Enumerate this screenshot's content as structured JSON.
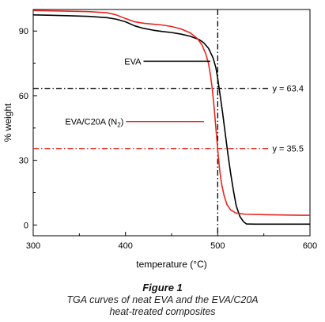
{
  "chart_data": {
    "type": "line",
    "xlabel_main": "temperature (",
    "xlabel_unit": "°C",
    "xlabel_close": ")",
    "ylabel": "% weight",
    "xlim": [
      300,
      600
    ],
    "ylim": [
      -5,
      100
    ],
    "xticks": [
      300,
      400,
      500,
      600
    ],
    "yticks": [
      0,
      30,
      60,
      90
    ],
    "grid": false,
    "series": [
      {
        "name": "EVA",
        "color": "#000000",
        "points": [
          [
            300,
            97.5
          ],
          [
            320,
            97.3
          ],
          [
            340,
            97.1
          ],
          [
            360,
            96.8
          ],
          [
            380,
            96.2
          ],
          [
            390,
            95.5
          ],
          [
            400,
            94.3
          ],
          [
            410,
            92.4
          ],
          [
            420,
            91.2
          ],
          [
            430,
            90.4
          ],
          [
            440,
            89.8
          ],
          [
            450,
            89.3
          ],
          [
            460,
            88.6
          ],
          [
            470,
            87.6
          ],
          [
            480,
            86.0
          ],
          [
            485,
            84.5
          ],
          [
            490,
            82.0
          ],
          [
            495,
            77.5
          ],
          [
            498,
            73.0
          ],
          [
            500,
            68.0
          ],
          [
            502,
            62.0
          ],
          [
            505,
            53.0
          ],
          [
            508,
            43.0
          ],
          [
            511,
            33.0
          ],
          [
            514,
            24.0
          ],
          [
            517,
            16.0
          ],
          [
            520,
            9.0
          ],
          [
            524,
            4.0
          ],
          [
            528,
            1.5
          ],
          [
            531,
            0.5
          ],
          [
            540,
            0.4
          ],
          [
            560,
            0.4
          ],
          [
            580,
            0.4
          ],
          [
            600,
            0.4
          ]
        ]
      },
      {
        "name": "EVA/C20A (N2)",
        "color": "#e8261f",
        "points": [
          [
            300,
            99.5
          ],
          [
            330,
            99.3
          ],
          [
            360,
            99.0
          ],
          [
            380,
            98.5
          ],
          [
            390,
            97.5
          ],
          [
            400,
            95.8
          ],
          [
            410,
            94.3
          ],
          [
            420,
            93.6
          ],
          [
            430,
            93.2
          ],
          [
            440,
            92.8
          ],
          [
            450,
            92.1
          ],
          [
            460,
            91.0
          ],
          [
            470,
            89.2
          ],
          [
            478,
            86.5
          ],
          [
            483,
            83.5
          ],
          [
            487,
            79.5
          ],
          [
            490,
            75.0
          ],
          [
            492,
            70.0
          ],
          [
            494,
            63.5
          ],
          [
            496,
            55.0
          ],
          [
            498,
            45.0
          ],
          [
            500,
            35.0
          ],
          [
            502,
            26.0
          ],
          [
            504,
            19.5
          ],
          [
            507,
            13.5
          ],
          [
            510,
            9.5
          ],
          [
            514,
            7.0
          ],
          [
            520,
            5.5
          ],
          [
            530,
            5.0
          ],
          [
            550,
            4.8
          ],
          [
            575,
            4.6
          ],
          [
            600,
            4.5
          ]
        ]
      }
    ],
    "reference_lines": [
      {
        "orientation": "vertical",
        "x": 500,
        "color": "#000000"
      },
      {
        "orientation": "horizontal",
        "y": 63.4,
        "x_from": 300,
        "x_to": 555,
        "color": "#000000",
        "label": "y = 63.4"
      },
      {
        "orientation": "horizontal",
        "y": 35.5,
        "x_from": 300,
        "x_to": 555,
        "color": "#e8261f",
        "label": "y = 35.5"
      }
    ],
    "annotations": [
      {
        "text": "EVA",
        "color": "#000000",
        "label_x": 417,
        "label_y": 76,
        "line_to_x": 492
      },
      {
        "text_main": "EVA/C20A (N",
        "sub": "2",
        "text_close": ")",
        "color": "#e8261f",
        "label_x": 398,
        "label_y": 48,
        "line_to_x": 485
      }
    ]
  },
  "caption": {
    "figure": "Figure 1",
    "line1": "TGA curves of neat EVA and the EVA/C20A",
    "line2": "heat-treated composites"
  }
}
